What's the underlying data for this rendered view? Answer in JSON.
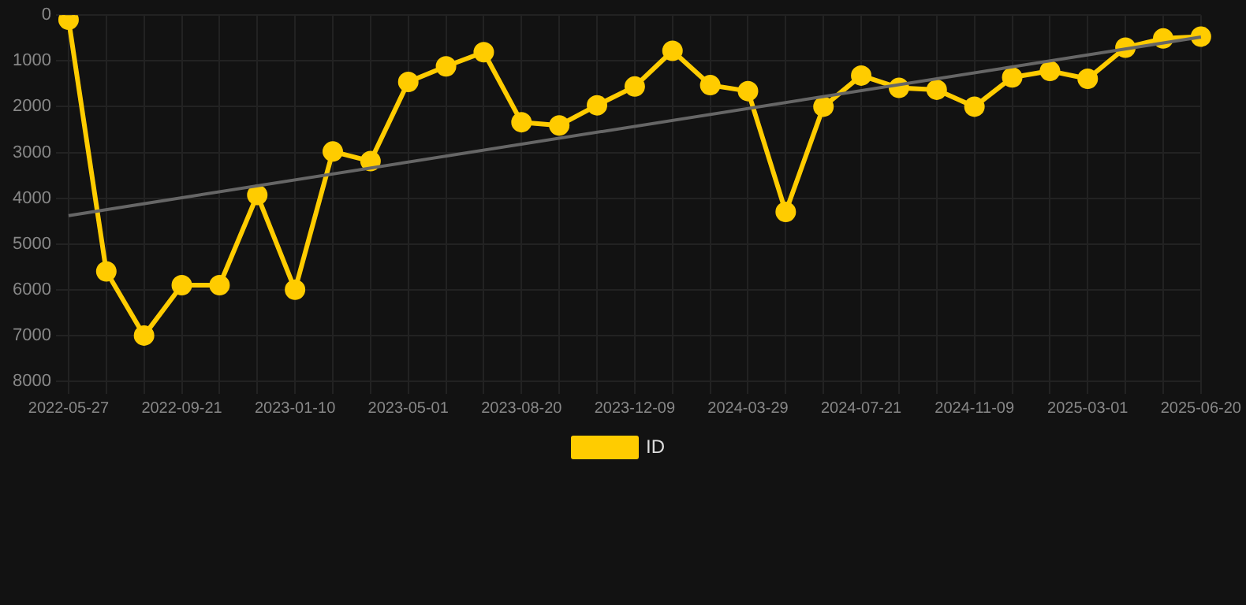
{
  "chart_data": {
    "type": "line",
    "categories": [
      "2022-05-27",
      null,
      null,
      "2022-09-21",
      null,
      null,
      "2023-01-10",
      null,
      null,
      "2023-05-01",
      null,
      null,
      "2023-08-20",
      null,
      null,
      "2023-12-09",
      null,
      null,
      "2024-03-29",
      null,
      null,
      "2024-07-21",
      null,
      null,
      "2024-11-09",
      null,
      null,
      "2025-03-01",
      null,
      null,
      "2025-06-20"
    ],
    "series": [
      {
        "name": "ID",
        "color": "#ffcc00",
        "marker": "circle",
        "values": [
          100,
          5600,
          7000,
          5900,
          5900,
          3930,
          6000,
          2980,
          3190,
          1460,
          1120,
          810,
          2340,
          2410,
          1970,
          1560,
          780,
          1530,
          1660,
          4300,
          2000,
          1320,
          1590,
          1630,
          2000,
          1360,
          1220,
          1390,
          710,
          510,
          470
        ]
      },
      {
        "type": "line",
        "color": "#666666",
        "marker": "none",
        "values": [
          4380,
          null,
          null,
          null,
          null,
          null,
          null,
          null,
          null,
          null,
          null,
          null,
          null,
          null,
          null,
          null,
          null,
          null,
          null,
          null,
          null,
          null,
          null,
          null,
          null,
          null,
          null,
          null,
          null,
          null,
          480
        ]
      }
    ],
    "ylim": [
      8000,
      0
    ],
    "yticks": [
      0,
      1000,
      2000,
      3000,
      4000,
      5000,
      6000,
      7000,
      8000
    ],
    "grid": true,
    "legend": "bottom"
  }
}
